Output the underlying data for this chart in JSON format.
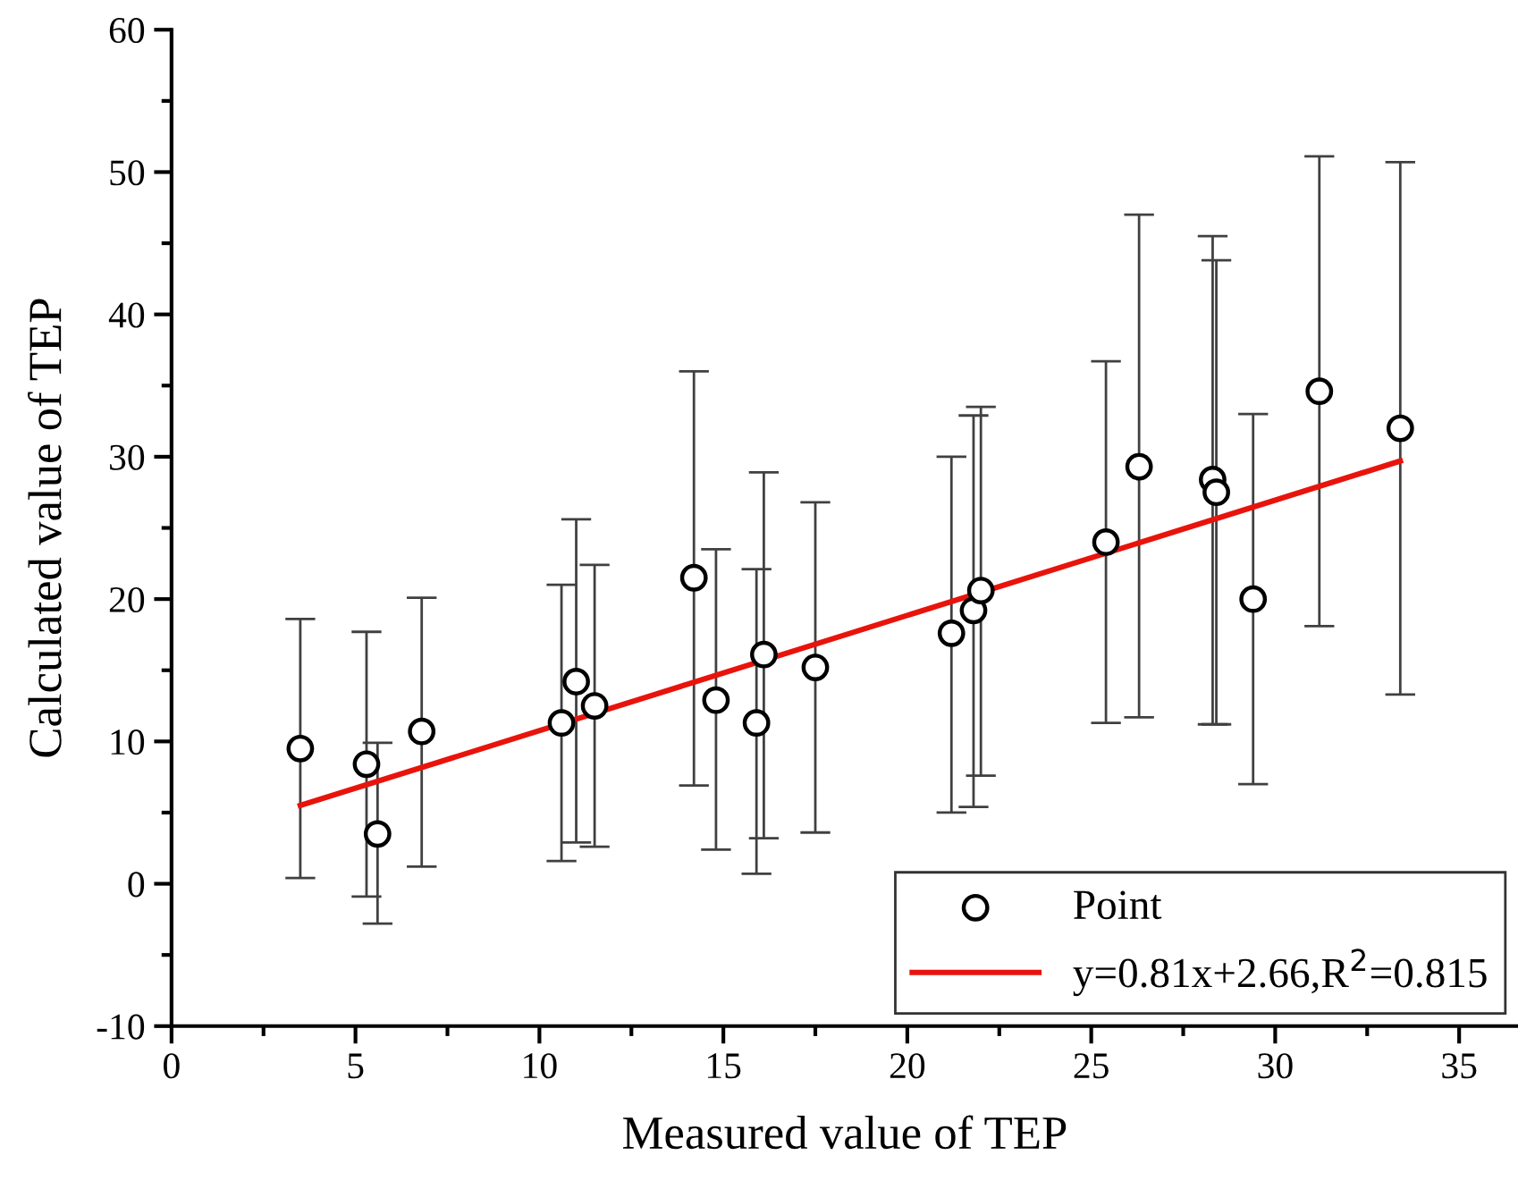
{
  "chart_data": {
    "type": "scatter",
    "xlabel": "Measured value of TEP",
    "ylabel": "Calculated value of TEP",
    "xlim": [
      0,
      36.6
    ],
    "ylim": [
      -10,
      60
    ],
    "xticks": [
      0,
      5,
      10,
      15,
      20,
      25,
      30,
      35
    ],
    "yticks": [
      -10,
      0,
      10,
      20,
      30,
      40,
      50,
      60
    ],
    "grid": false,
    "legend": "bottom right",
    "series": [
      {
        "name": "Point",
        "marker": "circle",
        "color": "#000000",
        "x": [
          3.5,
          5.3,
          5.6,
          6.8,
          10.6,
          11.0,
          11.5,
          14.2,
          14.8,
          15.9,
          16.1,
          17.5,
          21.2,
          21.8,
          22.0,
          25.4,
          26.3,
          28.3,
          28.4,
          29.4,
          31.2,
          33.4
        ],
        "values": [
          9.5,
          8.4,
          3.5,
          10.7,
          11.3,
          14.2,
          12.5,
          21.5,
          12.9,
          11.3,
          16.1,
          15.2,
          17.6,
          19.2,
          20.6,
          24.0,
          29.3,
          28.4,
          27.5,
          20.0,
          34.6,
          32.0
        ],
        "errors": [
          [
            0.4,
            18.6
          ],
          [
            -0.9,
            17.7
          ],
          [
            -2.8,
            9.9
          ],
          [
            1.2,
            20.1
          ],
          [
            1.6,
            21.0
          ],
          [
            2.9,
            25.6
          ],
          [
            2.6,
            22.4
          ],
          [
            6.9,
            36.0
          ],
          [
            2.4,
            23.5
          ],
          [
            0.7,
            22.1
          ],
          [
            3.2,
            28.9
          ],
          [
            3.6,
            26.8
          ],
          [
            5.0,
            30.0
          ],
          [
            5.4,
            32.9
          ],
          [
            7.6,
            33.5
          ],
          [
            11.3,
            36.7
          ],
          [
            11.7,
            47.0
          ],
          [
            11.2,
            45.5
          ],
          [
            11.2,
            43.8
          ],
          [
            7.0,
            33.0
          ],
          [
            18.1,
            51.1
          ],
          [
            13.3,
            50.7
          ]
        ]
      },
      {
        "name": "y=0.81x+2.66,R$^{2}$=0.815",
        "type": "line",
        "color": "#e8140c",
        "line_style": "solid",
        "marker": "none",
        "x": [
          3.5,
          33.4
        ],
        "values": [
          5.5,
          29.7
        ]
      }
    ]
  }
}
